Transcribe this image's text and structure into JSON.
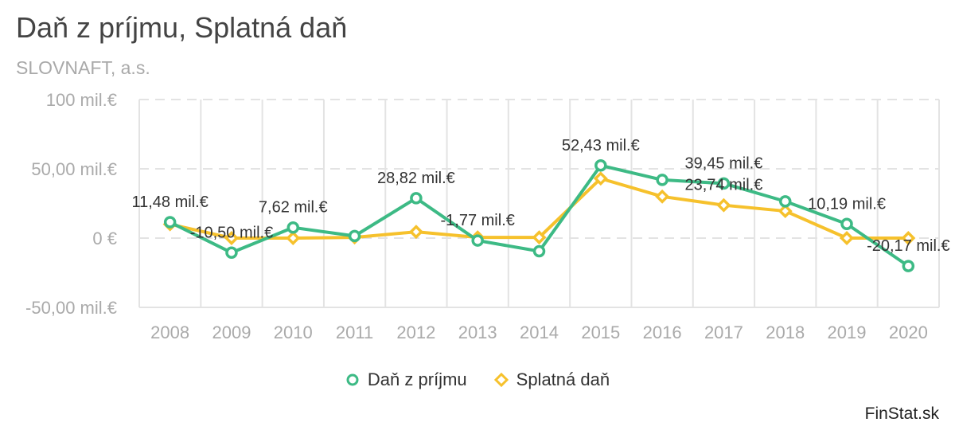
{
  "header": {
    "title": "Daň z príjmu, Splatná daň",
    "subtitle": "SLOVNAFT, a.s."
  },
  "colors": {
    "dan_z_prijmu": "#3dba85",
    "splatna_dan": "#f6c12c",
    "grid": "#e3e3e3",
    "axis_text": "#aaaaaa",
    "label_text": "#333333"
  },
  "chart_data": {
    "type": "line",
    "title": "Daň z príjmu, Splatná daň",
    "subtitle": "SLOVNAFT, a.s.",
    "categories": [
      "2008",
      "2009",
      "2010",
      "2011",
      "2012",
      "2013",
      "2014",
      "2015",
      "2016",
      "2017",
      "2018",
      "2019",
      "2020"
    ],
    "ylim": [
      -50,
      100
    ],
    "yticks": [
      100,
      50,
      0,
      -50
    ],
    "ytick_labels": [
      "100 mil.€",
      "50,00 mil.€",
      "0 €",
      "-50,00 mil.€"
    ],
    "grid": true,
    "legend_position": "bottom",
    "series": [
      {
        "name": "Daň z príjmu",
        "marker": "circle",
        "color": "#3dba85",
        "values": [
          11.48,
          -10.5,
          7.62,
          1.5,
          28.82,
          -1.77,
          -9.5,
          52.43,
          42.0,
          39.45,
          26.5,
          10.19,
          -20.17
        ]
      },
      {
        "name": "Splatná daň",
        "marker": "diamond",
        "color": "#f6c12c",
        "values": [
          10.0,
          0.0,
          0.0,
          0.5,
          4.5,
          0.5,
          0.5,
          43.0,
          30.0,
          23.74,
          19.5,
          0.0,
          0.0
        ]
      }
    ],
    "data_labels": [
      {
        "series": 0,
        "index": 0,
        "text": "11,48 mil.€"
      },
      {
        "series": 0,
        "index": 1,
        "text": "-10,50 mil.€"
      },
      {
        "series": 0,
        "index": 2,
        "text": "7,62 mil.€"
      },
      {
        "series": 0,
        "index": 4,
        "text": "28,82 mil.€"
      },
      {
        "series": 0,
        "index": 5,
        "text": "-1,77 mil.€"
      },
      {
        "series": 0,
        "index": 7,
        "text": "52,43 mil.€"
      },
      {
        "series": 0,
        "index": 9,
        "text": "39,45 mil.€"
      },
      {
        "series": 1,
        "index": 9,
        "text": "23,74 mil.€"
      },
      {
        "series": 0,
        "index": 11,
        "text": "10,19 mil.€"
      },
      {
        "series": 0,
        "index": 12,
        "text": "-20,17 mil.€"
      }
    ]
  },
  "footer": {
    "brand": "FinStat.sk"
  }
}
